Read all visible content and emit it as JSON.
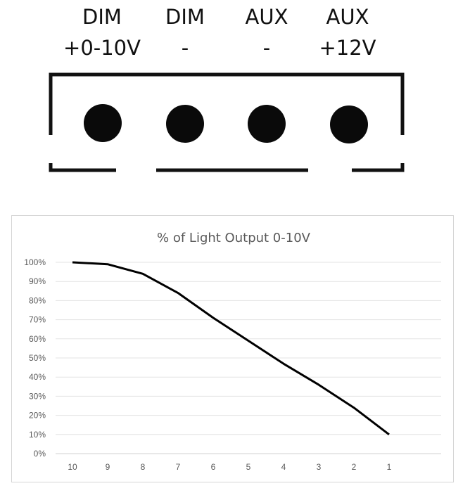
{
  "connector": {
    "terminals": [
      {
        "line1": "DIM",
        "line2": "+0-10V"
      },
      {
        "line1": "DIM",
        "line2": "-"
      },
      {
        "line1": "AUX",
        "line2": "-"
      },
      {
        "line1": "AUX",
        "line2": "+12V"
      }
    ]
  },
  "chart_data": {
    "type": "line",
    "title": "% of Light Output 0-10V",
    "xlabel": "",
    "ylabel": "",
    "categories": [
      "10",
      "9",
      "8",
      "7",
      "6",
      "5",
      "4",
      "3",
      "2",
      "1"
    ],
    "series": [
      {
        "values": [
          100,
          99,
          94,
          84,
          71,
          59,
          47,
          36,
          24,
          10
        ]
      }
    ],
    "ylim": [
      0,
      100
    ],
    "ytick_labels": [
      "0%",
      "10%",
      "20%",
      "30%",
      "40%",
      "50%",
      "60%",
      "70%",
      "80%",
      "90%",
      "100%"
    ],
    "grid": true,
    "legend": "none",
    "line_color": "#000000"
  }
}
